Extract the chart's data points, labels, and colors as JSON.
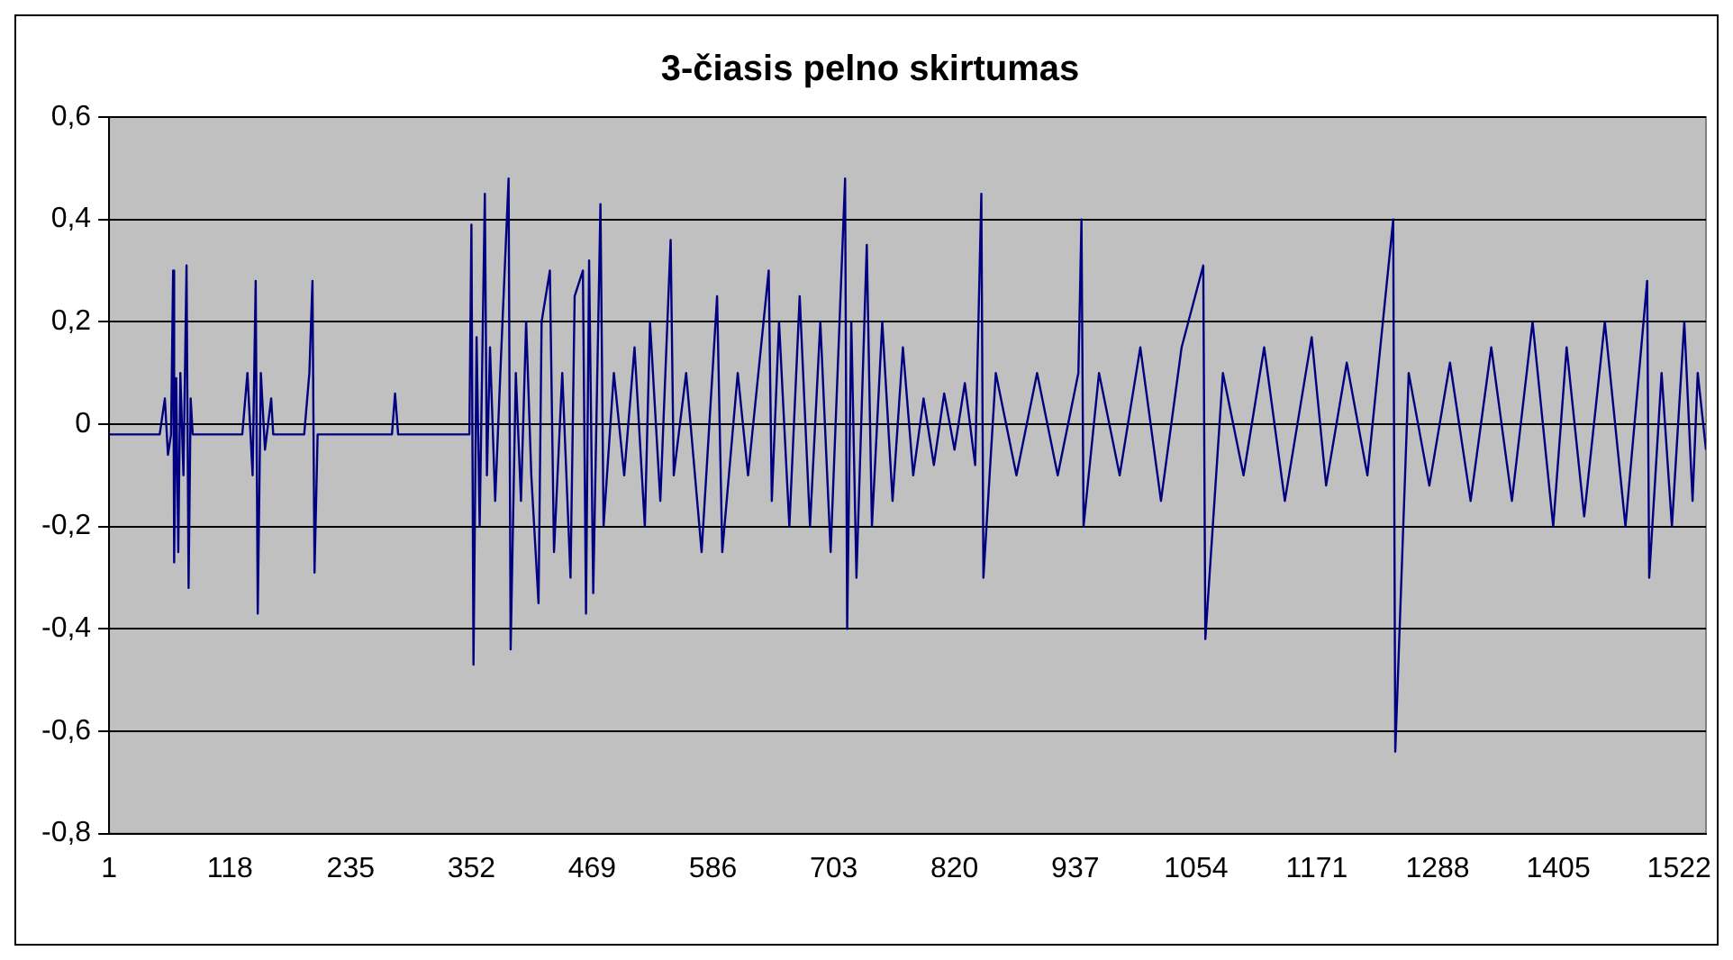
{
  "chart_data": {
    "type": "line",
    "title": "3-čiasis pelno skirtumas",
    "x": [
      1,
      50,
      55,
      58,
      61,
      63,
      64,
      66,
      68,
      70,
      73,
      76,
      78,
      80,
      82,
      130,
      135,
      140,
      143,
      145,
      148,
      152,
      158,
      160,
      190,
      195,
      198,
      200,
      203,
      275,
      278,
      281,
      350,
      352,
      354,
      357,
      360,
      365,
      367,
      370,
      375,
      380,
      388,
      390,
      395,
      400,
      405,
      410,
      417,
      420,
      428,
      432,
      440,
      448,
      452,
      460,
      463,
      466,
      470,
      477,
      480,
      490,
      500,
      510,
      520,
      525,
      535,
      545,
      548,
      560,
      575,
      590,
      595,
      610,
      620,
      640,
      643,
      650,
      660,
      670,
      680,
      690,
      700,
      714,
      716,
      720,
      725,
      735,
      740,
      750,
      760,
      770,
      780,
      790,
      800,
      810,
      820,
      830,
      840,
      846,
      848,
      860,
      880,
      900,
      920,
      940,
      943,
      945,
      960,
      980,
      1000,
      1020,
      1040,
      1061,
      1063,
      1080,
      1100,
      1120,
      1140,
      1166,
      1180,
      1200,
      1220,
      1245,
      1247,
      1260,
      1280,
      1300,
      1320,
      1340,
      1360,
      1380,
      1400,
      1413,
      1430,
      1450,
      1470,
      1491,
      1493,
      1505,
      1515,
      1527,
      1535,
      1540,
      1548
    ],
    "series": [
      {
        "color": "#000080",
        "values": [
          -0.02,
          -0.02,
          0.05,
          -0.06,
          -0.02,
          0.3,
          -0.27,
          0.09,
          -0.25,
          0.1,
          -0.1,
          0.31,
          -0.32,
          0.05,
          -0.02,
          -0.02,
          0.1,
          -0.1,
          0.28,
          -0.37,
          0.1,
          -0.05,
          0.05,
          -0.02,
          -0.02,
          0.1,
          0.28,
          -0.29,
          -0.02,
          -0.02,
          0.06,
          -0.02,
          -0.02,
          0.39,
          -0.47,
          0.17,
          -0.2,
          0.45,
          -0.1,
          0.15,
          -0.15,
          0.1,
          0.48,
          -0.44,
          0.1,
          -0.15,
          0.2,
          -0.1,
          -0.35,
          0.2,
          0.3,
          -0.25,
          0.1,
          -0.3,
          0.25,
          0.3,
          -0.37,
          0.32,
          -0.33,
          0.43,
          -0.2,
          0.1,
          -0.1,
          0.15,
          -0.2,
          0.2,
          -0.15,
          0.36,
          -0.1,
          0.1,
          -0.25,
          0.25,
          -0.25,
          0.1,
          -0.1,
          0.3,
          -0.15,
          0.2,
          -0.2,
          0.25,
          -0.2,
          0.2,
          -0.25,
          0.48,
          -0.4,
          0.2,
          -0.3,
          0.35,
          -0.2,
          0.2,
          -0.15,
          0.15,
          -0.1,
          0.05,
          -0.08,
          0.06,
          -0.05,
          0.08,
          -0.08,
          0.45,
          -0.3,
          0.1,
          -0.1,
          0.1,
          -0.1,
          0.1,
          0.4,
          -0.2,
          0.1,
          -0.1,
          0.15,
          -0.15,
          0.15,
          0.31,
          -0.42,
          0.1,
          -0.1,
          0.15,
          -0.15,
          0.17,
          -0.12,
          0.12,
          -0.1,
          0.4,
          -0.64,
          0.1,
          -0.12,
          0.12,
          -0.15,
          0.15,
          -0.15,
          0.2,
          -0.2,
          0.15,
          -0.18,
          0.2,
          -0.2,
          0.28,
          -0.3,
          0.1,
          -0.2,
          0.2,
          -0.15,
          0.1,
          -0.05
        ]
      }
    ],
    "xlim": [
      1,
      1548
    ],
    "xticks": [
      1,
      118,
      235,
      352,
      469,
      586,
      703,
      820,
      937,
      1054,
      1171,
      1288,
      1405,
      1522
    ],
    "ylim": [
      -0.8,
      0.6
    ],
    "yticks": [
      {
        "value": -0.8,
        "label": "-0,8"
      },
      {
        "value": -0.6,
        "label": "-0,6"
      },
      {
        "value": -0.4,
        "label": "-0,4"
      },
      {
        "value": -0.2,
        "label": "-0,2"
      },
      0,
      {
        "value": 0.2,
        "label": "0,2"
      },
      {
        "value": 0.4,
        "label": "0,4"
      },
      {
        "value": 0.6,
        "label": "0,6"
      }
    ],
    "grid": "y",
    "legend": false,
    "marker": "none",
    "line_style": "solid"
  }
}
